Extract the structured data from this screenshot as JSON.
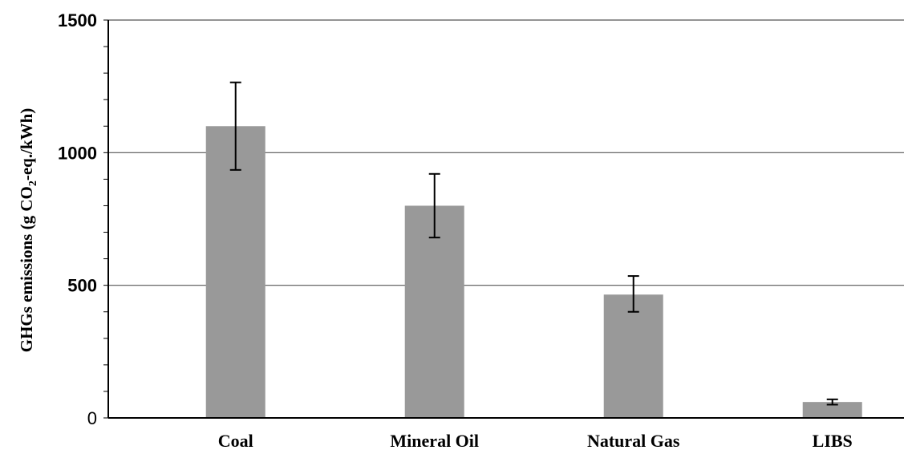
{
  "chart_data": {
    "type": "bar",
    "title": "",
    "xlabel": "",
    "ylabel": {
      "prefix": "GHGs emissions (g CO",
      "subscript": "2",
      "suffix": "-eq./kWh)"
    },
    "categories": [
      "Coal",
      "Mineral Oil",
      "Natural Gas",
      "LIBS"
    ],
    "values": [
      1100,
      800,
      465,
      60
    ],
    "error_low": [
      935,
      680,
      400,
      50
    ],
    "error_high": [
      1265,
      920,
      535,
      70
    ],
    "ylim": [
      0,
      1500
    ],
    "yticks": [
      {
        "value": 0,
        "label": "0",
        "bold": false
      },
      {
        "value": 500,
        "label": "500",
        "bold": true
      },
      {
        "value": 1000,
        "label": "1000",
        "bold": true
      },
      {
        "value": 1500,
        "label": "1500",
        "bold": true
      }
    ],
    "grid": true,
    "bar_color": "#999999",
    "error_color": "#000000"
  }
}
